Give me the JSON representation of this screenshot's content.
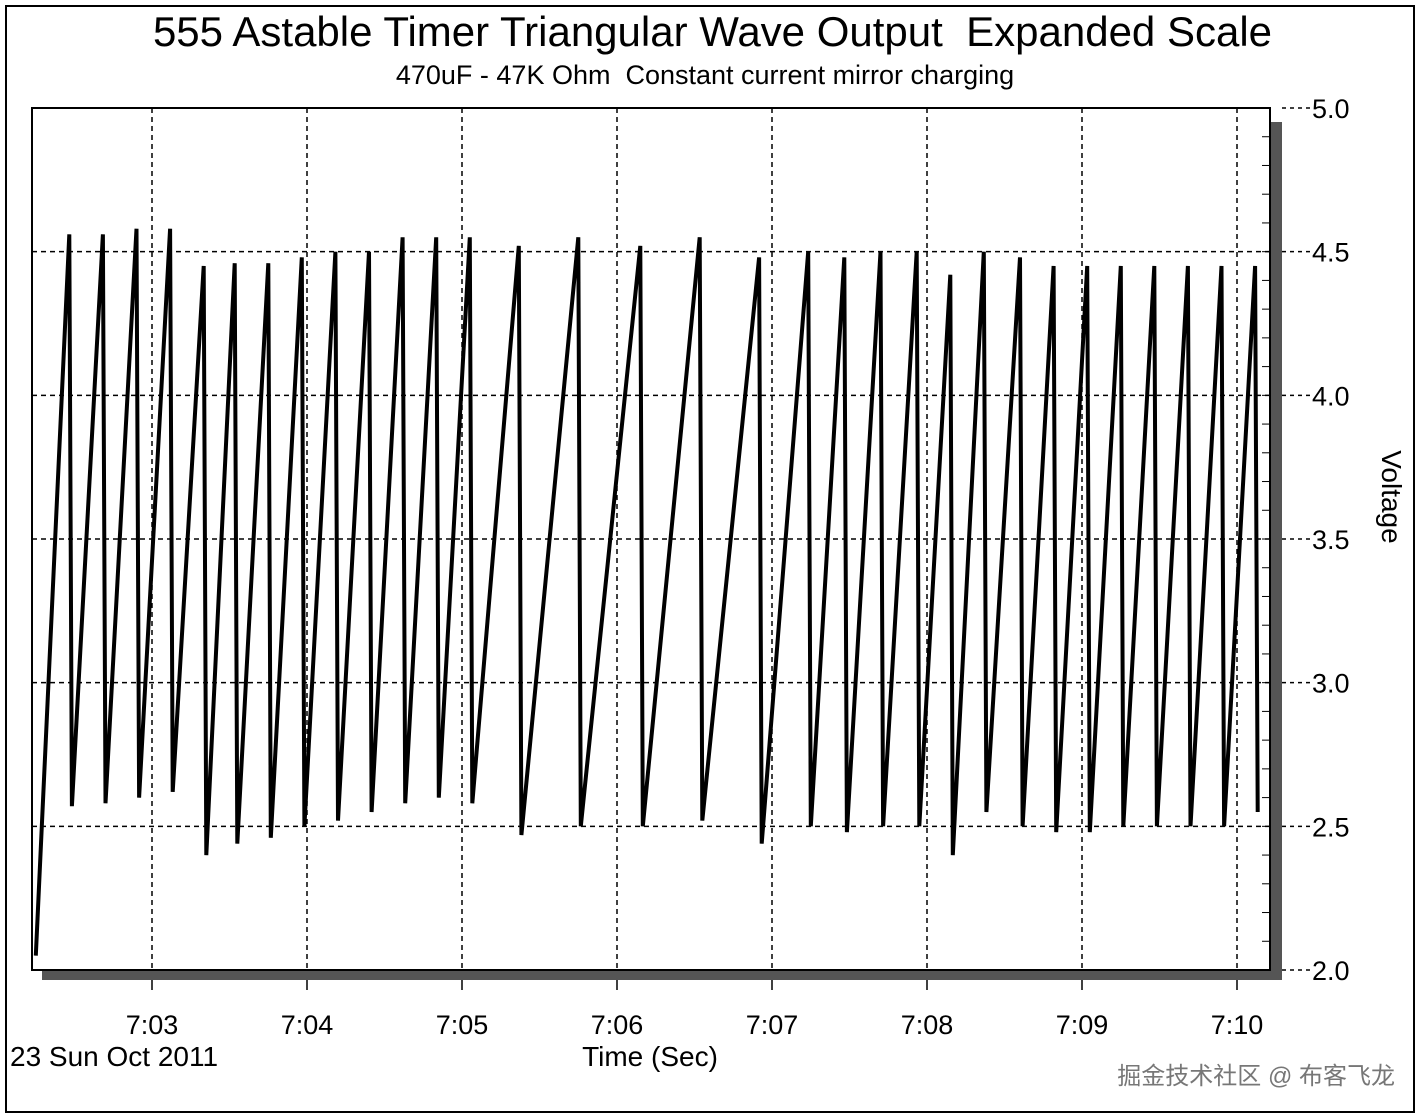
{
  "chart_data": {
    "type": "line",
    "title": "555 Astable Timer Triangular Wave Output  Expanded Scale",
    "subtitle": "470uF - 47K Ohm  Constant current mirror charging",
    "xlabel": "Time (Sec)",
    "ylabel": "Voltage",
    "date_label": "23 Sun Oct 2011",
    "x_tick_labels": [
      "7:03",
      "7:04",
      "7:05",
      "7:06",
      "7:07",
      "7:08",
      "7:09",
      "7:10"
    ],
    "y_tick_labels": [
      "5.0",
      "4.5",
      "4.0",
      "3.5",
      "3.0",
      "2.5",
      "2.0"
    ],
    "ylim": [
      2.0,
      5.0
    ],
    "grid": true,
    "series": [
      {
        "x": [
          "7:02:15",
          "7:02:28",
          "7:02:29",
          "7:02:41",
          "7:02:42",
          "7:02:54",
          "7:02:55",
          "7:03:07",
          "7:03:08",
          "7:03:20",
          "7:03:21",
          "7:03:32",
          "7:03:33",
          "7:03:45",
          "7:03:46",
          "7:03:58",
          "7:03:59",
          "7:04:11",
          "7:04:12",
          "7:04:24",
          "7:04:25",
          "7:04:37",
          "7:04:38",
          "7:04:50",
          "7:04:51",
          "7:05:03",
          "7:05:04",
          "7:05:22",
          "7:05:23",
          "7:05:45",
          "7:05:46",
          "7:06:09",
          "7:06:10",
          "7:06:32",
          "7:06:33",
          "7:06:55",
          "7:06:56",
          "7:07:14",
          "7:07:15",
          "7:07:28",
          "7:07:29",
          "7:07:42",
          "7:07:43",
          "7:07:56",
          "7:07:57",
          "7:08:09",
          "7:08:10",
          "7:08:22",
          "7:08:23",
          "7:08:36",
          "7:08:37",
          "7:08:49",
          "7:08:50",
          "7:09:02",
          "7:09:03",
          "7:09:15",
          "7:09:16",
          "7:09:28",
          "7:09:29",
          "7:09:41",
          "7:09:42",
          "7:09:54",
          "7:09:55",
          "7:10:07",
          "7:10:08"
        ],
        "y": [
          2.05,
          4.56,
          2.57,
          4.56,
          2.58,
          4.58,
          2.6,
          4.58,
          2.62,
          4.45,
          2.4,
          4.46,
          2.44,
          4.46,
          2.46,
          4.48,
          2.5,
          4.5,
          2.52,
          4.5,
          2.55,
          4.55,
          2.58,
          4.55,
          2.6,
          4.55,
          2.58,
          4.52,
          2.47,
          4.55,
          2.5,
          4.52,
          2.5,
          4.55,
          2.52,
          4.48,
          2.44,
          4.5,
          2.5,
          4.48,
          2.48,
          4.5,
          2.5,
          4.5,
          2.5,
          4.42,
          2.4,
          4.5,
          2.55,
          4.48,
          2.5,
          4.45,
          2.48,
          4.45,
          2.48,
          4.45,
          2.5,
          4.45,
          2.5,
          4.45,
          2.5,
          4.45,
          2.5,
          4.45,
          2.55
        ]
      }
    ]
  },
  "watermark": "掘金技术社区 @ 布客飞龙"
}
